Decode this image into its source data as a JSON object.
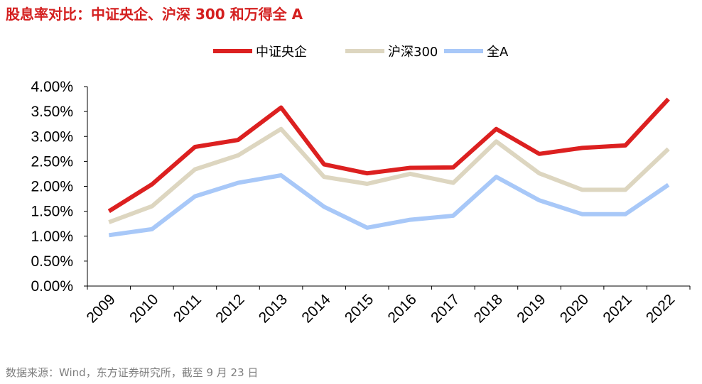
{
  "title": "股息率对比：中证央企、沪深 300 和万得全 A",
  "source": "数据来源：Wind，东方证券研究所，截至 9 月 23 日",
  "colors": {
    "title": "#d42020",
    "source": "#7f7f7f",
    "axis": "#000000"
  },
  "chart_data": {
    "type": "line",
    "title": "股息率对比：中证央企、沪深 300 和万得全 A",
    "xlabel": "",
    "ylabel": "",
    "categories": [
      "2009",
      "2010",
      "2011",
      "2012",
      "2013",
      "2014",
      "2015",
      "2016",
      "2017",
      "2018",
      "2019",
      "2020",
      "2021",
      "2022"
    ],
    "ylim": [
      0,
      4
    ],
    "yticks": [
      0,
      0.5,
      1.0,
      1.5,
      2.0,
      2.5,
      3.0,
      3.5,
      4.0
    ],
    "ytick_labels": [
      "0.00%",
      "0.50%",
      "1.00%",
      "1.50%",
      "2.00%",
      "2.50%",
      "3.00%",
      "3.50%",
      "4.00%"
    ],
    "grid": false,
    "legend_position": "top-center",
    "series": [
      {
        "name": "中证央企",
        "color": "#dc2020",
        "values": [
          1.5,
          2.04,
          2.79,
          2.93,
          3.58,
          2.44,
          2.26,
          2.37,
          2.38,
          3.15,
          2.65,
          2.77,
          2.82,
          3.75
        ]
      },
      {
        "name": "沪深300",
        "color": "#ddd6c0",
        "values": [
          1.28,
          1.6,
          2.34,
          2.62,
          3.15,
          2.19,
          2.05,
          2.25,
          2.07,
          2.9,
          2.26,
          1.93,
          1.93,
          2.75
        ]
      },
      {
        "name": "全A",
        "color": "#a8c8f8",
        "values": [
          1.02,
          1.14,
          1.8,
          2.07,
          2.22,
          1.59,
          1.17,
          1.33,
          1.41,
          2.19,
          1.72,
          1.44,
          1.44,
          2.03
        ]
      }
    ]
  }
}
